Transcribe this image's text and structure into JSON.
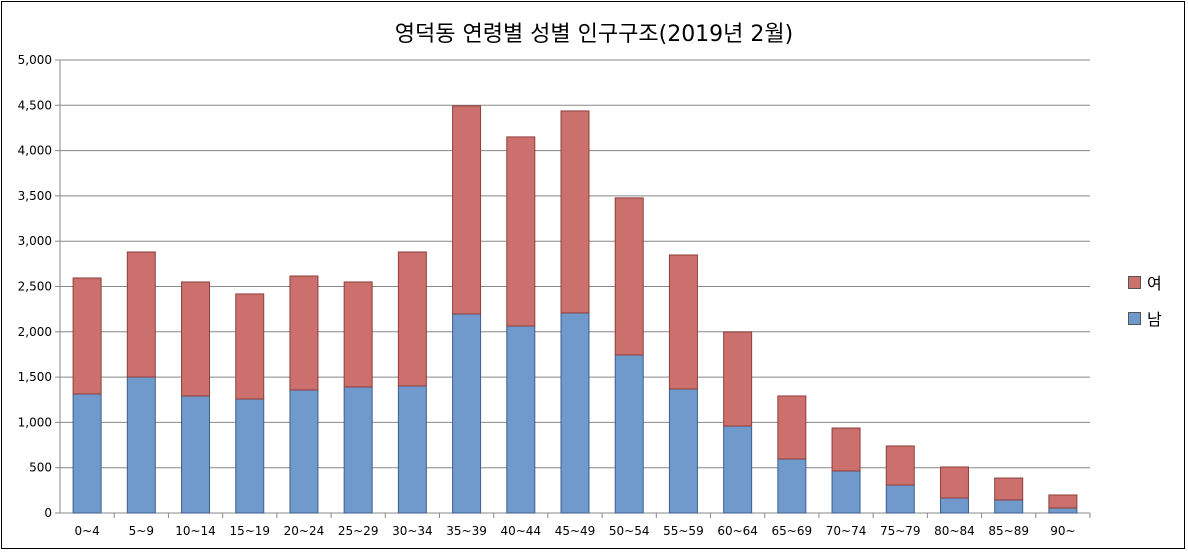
{
  "chart_data": {
    "type": "bar",
    "stacked": true,
    "title": "영덕동 연령별 성별 인구구조(2019년 2월)",
    "xlabel": "",
    "ylabel": "",
    "ylim": [
      0,
      5000
    ],
    "yticks": [
      0,
      500,
      1000,
      1500,
      2000,
      2500,
      3000,
      3500,
      4000,
      4500,
      5000
    ],
    "ytick_labels": [
      "0",
      "500",
      "1,000",
      "1,500",
      "2,000",
      "2,500",
      "3,000",
      "3,500",
      "4,000",
      "4,500",
      "5,000"
    ],
    "grid": true,
    "legend_position": "right",
    "categories": [
      "0~4",
      "5~9",
      "10~14",
      "15~19",
      "20~24",
      "25~29",
      "30~34",
      "35~39",
      "40~44",
      "45~49",
      "50~54",
      "55~59",
      "60~64",
      "65~69",
      "70~74",
      "75~79",
      "80~84",
      "85~89",
      "90~"
    ],
    "series": [
      {
        "name": "남",
        "color": "#7099CC",
        "values": [
          1314,
          1501,
          1292,
          1258,
          1358,
          1391,
          1402,
          2197,
          2064,
          2208,
          1744,
          1369,
          960,
          596,
          464,
          309,
          166,
          144,
          55
        ]
      },
      {
        "name": "여",
        "color": "#CC706D",
        "values": [
          1280,
          1380,
          1258,
          1160,
          1258,
          1159,
          1479,
          2296,
          2087,
          2230,
          1734,
          1479,
          1038,
          696,
          474,
          431,
          342,
          242,
          144
        ]
      }
    ],
    "legend_order": [
      "여",
      "남"
    ]
  }
}
